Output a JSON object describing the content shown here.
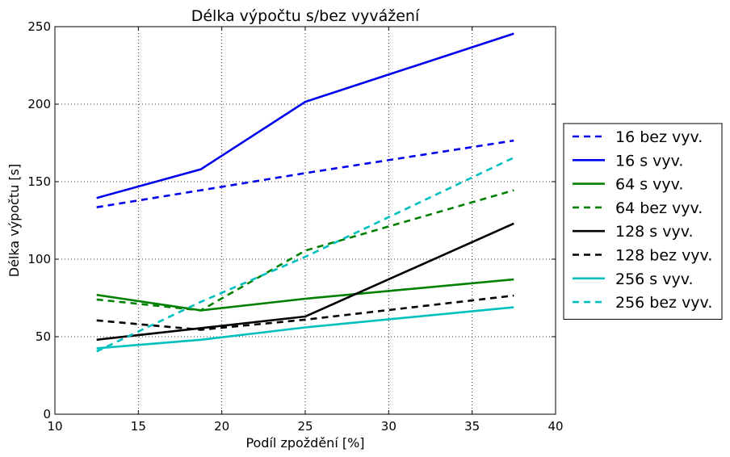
{
  "chart_data": {
    "type": "line",
    "title": "Délka výpočtu s/bez vyvážení",
    "xlabel": "Podíl zpoždění [%]",
    "ylabel": "Délka výpočtu [s]",
    "xlim": [
      10,
      40
    ],
    "ylim": [
      0,
      250
    ],
    "xticks": [
      10,
      15,
      20,
      25,
      30,
      35,
      40
    ],
    "yticks": [
      0,
      50,
      100,
      150,
      200,
      250
    ],
    "grid": true,
    "legend_position": "right",
    "x": [
      12.5,
      18.75,
      25,
      37.5
    ],
    "series": [
      {
        "name": "16 bez vyv.",
        "color": "#0000ee",
        "dash": true,
        "values": [
          133.5,
          144.5,
          155.5,
          176.5
        ]
      },
      {
        "name": "16 s vyv.",
        "color": "#0000ee",
        "dash": false,
        "values": [
          139.5,
          158.0,
          201.5,
          245.5
        ]
      },
      {
        "name": "64 s vyv.",
        "color": "#008000",
        "dash": false,
        "values": [
          77.0,
          67.0,
          74.5,
          87.0
        ]
      },
      {
        "name": "64 bez vyv.",
        "color": "#008000",
        "dash": true,
        "values": [
          74.0,
          67.0,
          105.5,
          144.5
        ]
      },
      {
        "name": "128 s vyv.",
        "color": "#000000",
        "dash": false,
        "values": [
          48.0,
          55.5,
          63.0,
          123.0
        ]
      },
      {
        "name": "128 bez vyv.",
        "color": "#000000",
        "dash": true,
        "values": [
          60.5,
          54.5,
          61.0,
          76.5
        ]
      },
      {
        "name": "256 s vyv.",
        "color": "#00bfbf",
        "dash": false,
        "values": [
          42.5,
          48.0,
          56.0,
          69.0
        ]
      },
      {
        "name": "256 bez vyv.",
        "color": "#00bfbf",
        "dash": true,
        "values": [
          40.5,
          72.5,
          101.5,
          165.5
        ]
      }
    ]
  }
}
